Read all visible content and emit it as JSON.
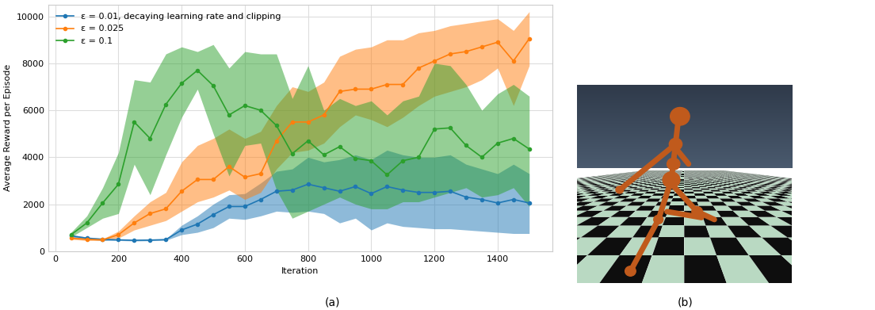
{
  "chart_data": {
    "type": "line",
    "caption": "(a)",
    "xlabel": "Iteration",
    "ylabel": "Average Reward per Episode",
    "x": [
      50,
      100,
      150,
      200,
      250,
      300,
      350,
      400,
      450,
      500,
      550,
      600,
      650,
      700,
      750,
      800,
      850,
      900,
      950,
      1000,
      1050,
      1100,
      1150,
      1200,
      1250,
      1300,
      1350,
      1400,
      1450,
      1500
    ],
    "series": [
      {
        "name": "ε = 0.01, decaying learning rate and clipping",
        "color": "#1f77b4",
        "values": [
          650,
          550,
          500,
          480,
          460,
          470,
          490,
          900,
          1150,
          1550,
          1900,
          1900,
          2200,
          2550,
          2600,
          2850,
          2700,
          2550,
          2750,
          2450,
          2750,
          2600,
          2500,
          2500,
          2550,
          2300,
          2200,
          2050,
          2200,
          2050
        ],
        "lower": [
          600,
          500,
          450,
          450,
          430,
          440,
          460,
          700,
          800,
          1000,
          1400,
          1350,
          1500,
          1700,
          1650,
          1700,
          1600,
          1200,
          1400,
          900,
          1200,
          1050,
          1000,
          950,
          950,
          900,
          850,
          800,
          750,
          750
        ],
        "upper": [
          700,
          600,
          550,
          500,
          490,
          500,
          520,
          1100,
          1500,
          2000,
          2400,
          2450,
          2900,
          3400,
          3500,
          4000,
          3800,
          3900,
          4100,
          3900,
          4300,
          4100,
          4000,
          4000,
          4100,
          3700,
          3500,
          3300,
          3700,
          3300
        ]
      },
      {
        "name": "ε = 0.025",
        "color": "#ff7f0e",
        "values": [
          550,
          500,
          480,
          700,
          1200,
          1600,
          1800,
          2550,
          3050,
          3050,
          3600,
          3150,
          3300,
          4700,
          5500,
          5500,
          5800,
          6800,
          6900,
          6900,
          7100,
          7100,
          7800,
          8100,
          8400,
          8500,
          8700,
          8900,
          8100,
          9050
        ],
        "lower": [
          500,
          450,
          450,
          550,
          900,
          1100,
          1300,
          1700,
          2100,
          2300,
          2600,
          2200,
          2500,
          3500,
          4200,
          4300,
          4600,
          5300,
          5800,
          5600,
          5300,
          5700,
          6200,
          6600,
          6800,
          7000,
          7300,
          7800,
          6200,
          7900
        ],
        "upper": [
          600,
          560,
          520,
          850,
          1500,
          2100,
          2500,
          3800,
          4500,
          4800,
          5200,
          4800,
          5100,
          6200,
          7000,
          6800,
          7200,
          8300,
          8600,
          8700,
          9000,
          9000,
          9300,
          9400,
          9600,
          9700,
          9800,
          9900,
          9400,
          10200
        ]
      },
      {
        "name": "ε = 0.1",
        "color": "#2ca02c",
        "values": [
          700,
          1200,
          2050,
          2850,
          5500,
          4800,
          6250,
          7150,
          7700,
          7050,
          5800,
          6200,
          6000,
          5350,
          4150,
          4700,
          4100,
          4450,
          3950,
          3850,
          3250,
          3850,
          4000,
          5200,
          5250,
          4500,
          4000,
          4600,
          4800,
          4350
        ],
        "lower": [
          600,
          1000,
          1400,
          1600,
          3700,
          2400,
          4100,
          5700,
          6900,
          5000,
          3200,
          4500,
          4600,
          2600,
          1400,
          1700,
          2000,
          2300,
          2000,
          1800,
          1800,
          2100,
          2100,
          2300,
          2500,
          2700,
          2300,
          2400,
          2700,
          1900
        ],
        "upper": [
          800,
          1500,
          2700,
          4200,
          7300,
          7200,
          8400,
          8700,
          8500,
          8800,
          7800,
          8500,
          8400,
          8400,
          6500,
          7900,
          6000,
          6500,
          6200,
          6400,
          5800,
          6400,
          6600,
          8000,
          7900,
          7100,
          6000,
          6700,
          7100,
          6600
        ]
      }
    ],
    "xlim": [
      -22.5,
      1572.5
    ],
    "ylim": [
      0,
      10500
    ],
    "xticks": [
      0,
      200,
      400,
      600,
      800,
      1000,
      1200,
      1400
    ],
    "yticks": [
      0,
      2000,
      4000,
      6000,
      8000,
      10000
    ],
    "grid": true,
    "legend": "upper left",
    "marker": "o"
  },
  "image_panel": {
    "caption": "(b)"
  }
}
